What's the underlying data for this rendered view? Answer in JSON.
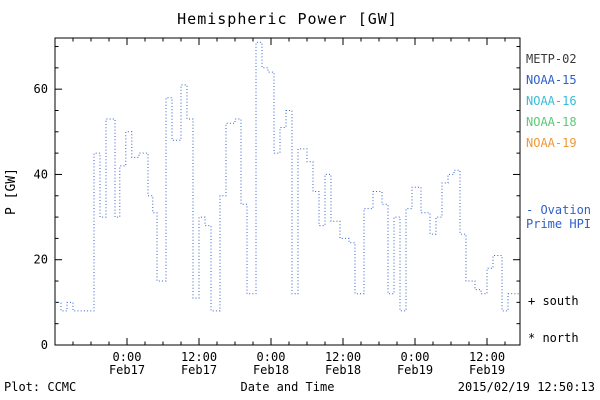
{
  "title": "Hemispheric Power [GW]",
  "footer": {
    "plot_credit": "Plot: CCMC",
    "xlabel": "Date and Time",
    "timestamp": "2015/02/19 12:50:13"
  },
  "legend": {
    "satellites": [
      {
        "label": "METP-02",
        "color": "#3a3a3a"
      },
      {
        "label": "NOAA-15",
        "color": "#3060c8"
      },
      {
        "label": "NOAA-16",
        "color": "#38bcd8"
      },
      {
        "label": "NOAA-18",
        "color": "#5cc878"
      },
      {
        "label": "NOAA-19",
        "color": "#f09838"
      }
    ],
    "model_line1": "- Ovation",
    "model_line2": "Prime HPI",
    "model_color": "#3060c8",
    "south_marker": "+ south",
    "north_marker": "* north"
  },
  "chart_data": {
    "type": "line",
    "subtype": "step",
    "line_style": "dotted",
    "line_color": "#3060c8",
    "grid": false,
    "title": "Hemispheric Power [GW]",
    "xlabel": "Date and Time",
    "ylabel": "P [GW]",
    "ylim": [
      0,
      72
    ],
    "yticks": [
      0,
      20,
      40,
      60
    ],
    "y_minor_step": 5,
    "xlim_hours": [
      0,
      77.5
    ],
    "x_minor_step_hours": 3,
    "xticks": [
      {
        "hour": 12,
        "time": "0:00",
        "date": "Feb17"
      },
      {
        "hour": 24,
        "time": "12:00",
        "date": "Feb17"
      },
      {
        "hour": 36,
        "time": "0:00",
        "date": "Feb18"
      },
      {
        "hour": 48,
        "time": "12:00",
        "date": "Feb18"
      },
      {
        "hour": 60,
        "time": "0:00",
        "date": "Feb19"
      },
      {
        "hour": 72,
        "time": "12:00",
        "date": "Feb19"
      }
    ],
    "series": [
      {
        "name": "Ovation Prime HPI",
        "units": "GW",
        "points": [
          [
            0,
            10
          ],
          [
            1,
            8
          ],
          [
            2,
            10
          ],
          [
            3,
            8
          ],
          [
            6.5,
            45
          ],
          [
            7.5,
            30
          ],
          [
            8.5,
            53
          ],
          [
            10,
            30
          ],
          [
            10.8,
            42
          ],
          [
            11.8,
            50
          ],
          [
            12.8,
            44
          ],
          [
            14,
            45
          ],
          [
            15.5,
            35
          ],
          [
            16.3,
            31
          ],
          [
            17,
            15
          ],
          [
            18.5,
            58
          ],
          [
            19.5,
            48
          ],
          [
            21,
            61
          ],
          [
            22,
            53
          ],
          [
            23,
            11
          ],
          [
            24,
            30
          ],
          [
            25,
            28
          ],
          [
            26,
            8
          ],
          [
            27.5,
            35
          ],
          [
            28.5,
            52
          ],
          [
            30,
            53
          ],
          [
            31,
            33
          ],
          [
            32,
            12
          ],
          [
            33.5,
            71
          ],
          [
            34.5,
            65
          ],
          [
            35.5,
            64
          ],
          [
            36.5,
            45
          ],
          [
            37.5,
            51
          ],
          [
            38.5,
            55
          ],
          [
            39.5,
            12
          ],
          [
            40.5,
            46
          ],
          [
            42,
            43
          ],
          [
            43,
            36
          ],
          [
            44,
            28
          ],
          [
            45,
            40
          ],
          [
            46,
            29
          ],
          [
            47.5,
            25
          ],
          [
            49,
            24
          ],
          [
            50,
            12
          ],
          [
            51.5,
            32
          ],
          [
            53,
            36
          ],
          [
            54.5,
            33
          ],
          [
            55.5,
            12
          ],
          [
            56.5,
            30
          ],
          [
            57.5,
            8
          ],
          [
            58.5,
            32
          ],
          [
            59.5,
            37
          ],
          [
            61,
            31
          ],
          [
            62.5,
            26
          ],
          [
            63.5,
            30
          ],
          [
            64.5,
            38
          ],
          [
            65.5,
            40
          ],
          [
            66.5,
            41
          ],
          [
            67.5,
            26
          ],
          [
            68.5,
            15
          ],
          [
            70,
            13
          ],
          [
            71,
            12
          ],
          [
            72,
            18
          ],
          [
            73,
            21
          ],
          [
            74.5,
            8
          ],
          [
            75.5,
            12
          ]
        ]
      }
    ]
  }
}
